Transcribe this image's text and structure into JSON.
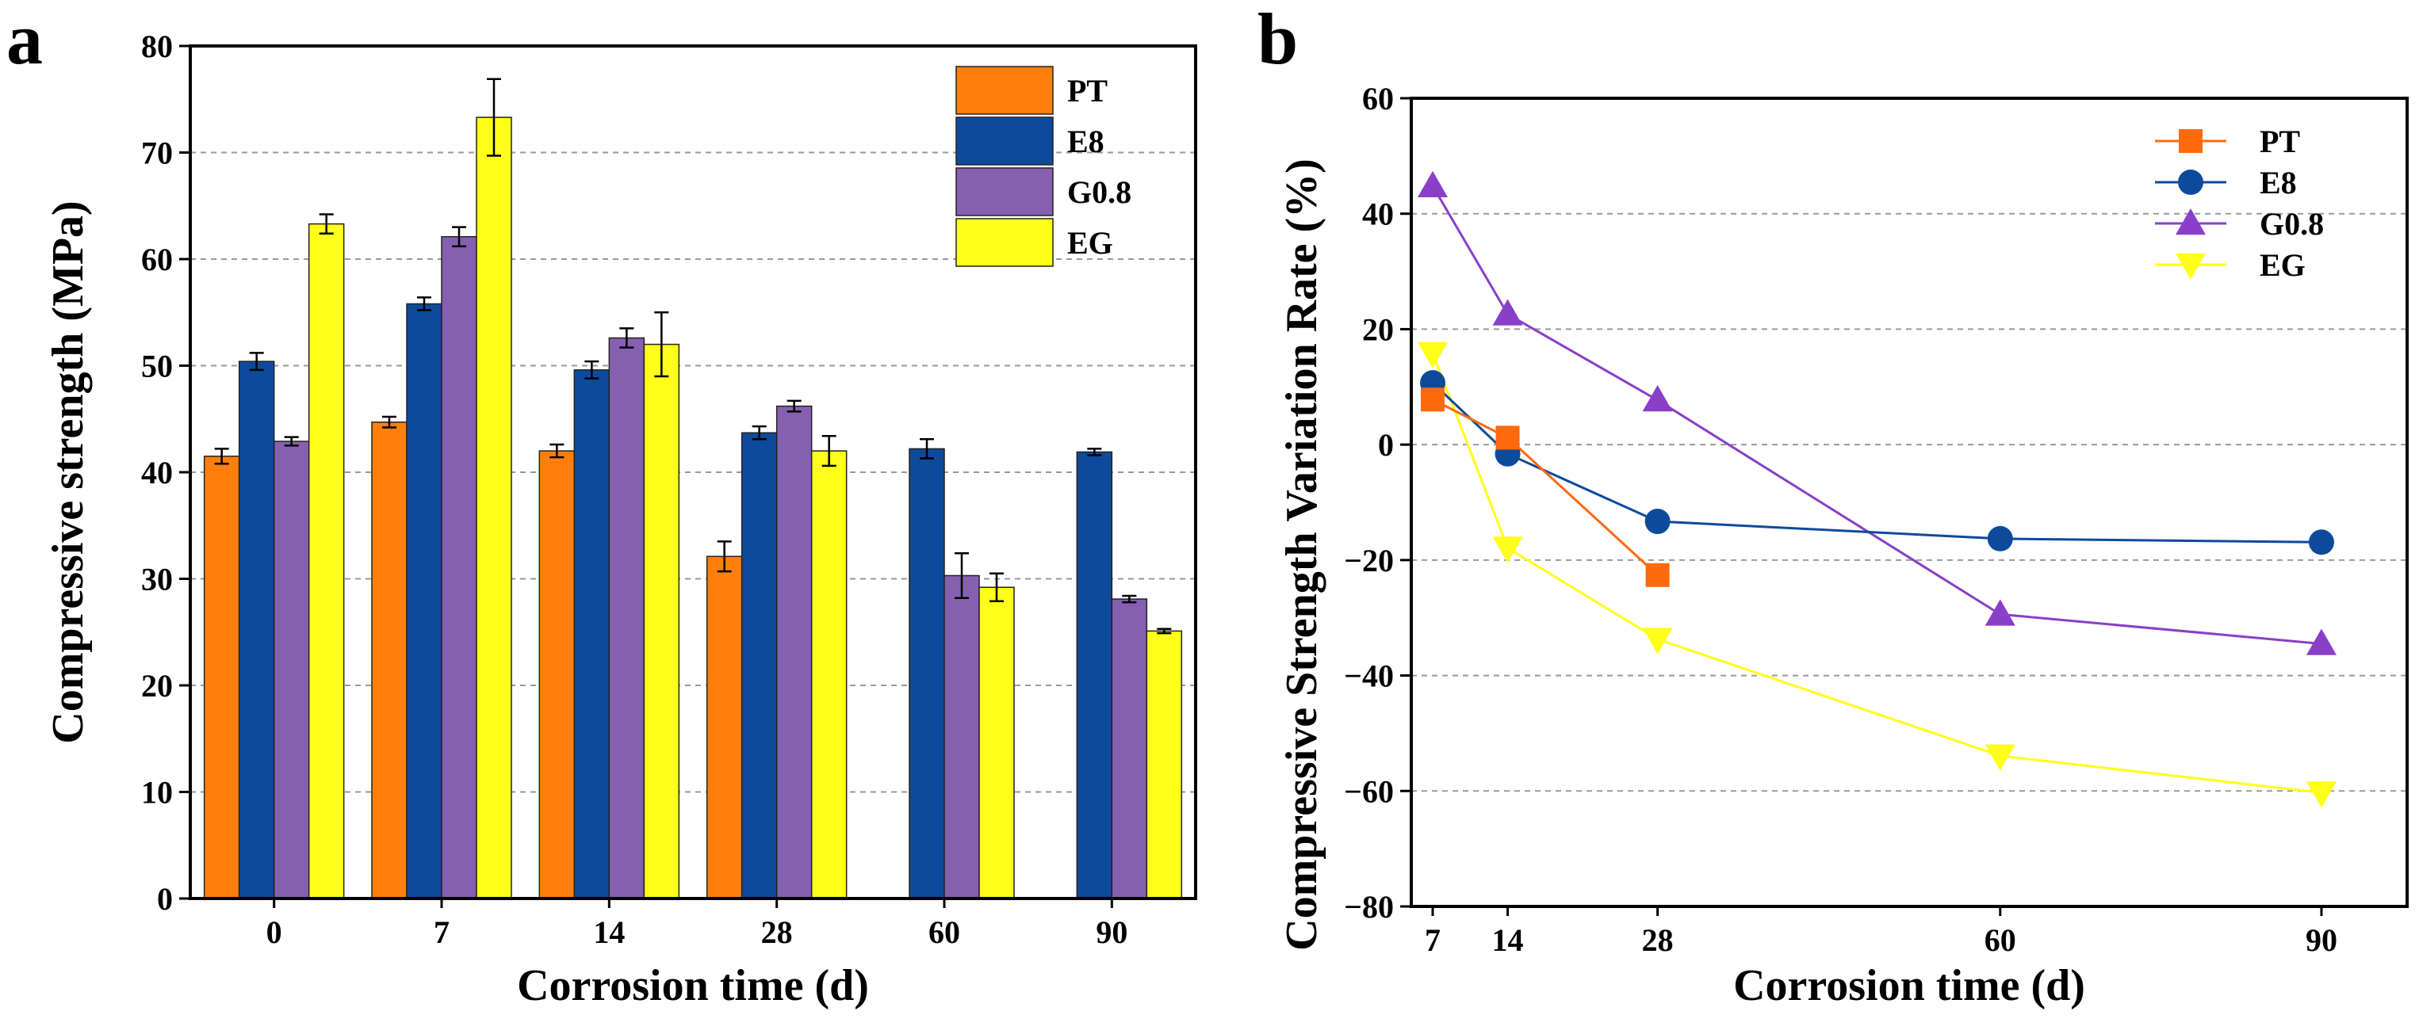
{
  "chart_data": [
    {
      "panel": "a",
      "type": "bar",
      "xlabel": "Corrosion time (d)",
      "ylabel": "Compressive strength  (MPa)",
      "ylim": [
        0,
        80
      ],
      "yticks": [
        0,
        10,
        20,
        30,
        40,
        50,
        60,
        70,
        80
      ],
      "categories": [
        "0",
        "7",
        "14",
        "28",
        "60",
        "90"
      ],
      "grid": "horizontal dashed",
      "legend_position": "top-right",
      "series": [
        {
          "name": "PT",
          "color": "#FF7F0E",
          "values": [
            41.5,
            44.7,
            42.0,
            32.1,
            null,
            null
          ],
          "errors": [
            0.7,
            0.5,
            0.6,
            1.4,
            null,
            null
          ]
        },
        {
          "name": "E8",
          "color": "#0E4A9C",
          "values": [
            50.4,
            55.8,
            49.6,
            43.7,
            42.2,
            41.9
          ],
          "errors": [
            0.8,
            0.6,
            0.8,
            0.6,
            0.9,
            0.3
          ]
        },
        {
          "name": "G0.8",
          "color": "#8660B0",
          "values": [
            42.9,
            62.1,
            52.6,
            46.2,
            30.3,
            28.1
          ],
          "errors": [
            0.4,
            0.9,
            0.9,
            0.5,
            2.1,
            0.3
          ]
        },
        {
          "name": "EG",
          "color": "#FFFF1A",
          "values": [
            63.3,
            73.3,
            52.0,
            42.0,
            29.2,
            25.1
          ],
          "errors": [
            0.9,
            3.6,
            3.0,
            1.4,
            1.3,
            0.2
          ]
        }
      ]
    },
    {
      "panel": "b",
      "type": "line",
      "xlabel": "Corrosion time (d)",
      "ylabel": "Compressive Strength  Variation Rate (%)",
      "xlim": [
        5,
        98
      ],
      "ylim": [
        -80,
        60
      ],
      "xticks": [
        7,
        14,
        28,
        60,
        90
      ],
      "yticks": [
        -80,
        -60,
        -40,
        -20,
        0,
        20,
        40,
        60
      ],
      "grid": "horizontal dashed",
      "legend_position": "top-right",
      "series": [
        {
          "name": "PT",
          "color": "#FF6A0E",
          "marker": "square",
          "x": [
            7,
            14,
            28
          ],
          "y": [
            7.8,
            1.2,
            -22.6
          ]
        },
        {
          "name": "E8",
          "color": "#0E4A9C",
          "marker": "circle",
          "x": [
            7,
            14,
            28,
            60,
            90
          ],
          "y": [
            10.7,
            -1.6,
            -13.3,
            -16.3,
            -16.9
          ]
        },
        {
          "name": "G0.8",
          "color": "#8A3FC8",
          "marker": "triangle-up",
          "x": [
            7,
            14,
            28,
            60,
            90
          ],
          "y": [
            44.8,
            22.6,
            7.7,
            -29.4,
            -34.5
          ]
        },
        {
          "name": "EG",
          "color": "#FFFF1A",
          "marker": "triangle-down",
          "x": [
            7,
            14,
            28,
            60,
            90
          ],
          "y": [
            15.8,
            -17.9,
            -33.7,
            -53.9,
            -60.3
          ]
        }
      ]
    }
  ]
}
